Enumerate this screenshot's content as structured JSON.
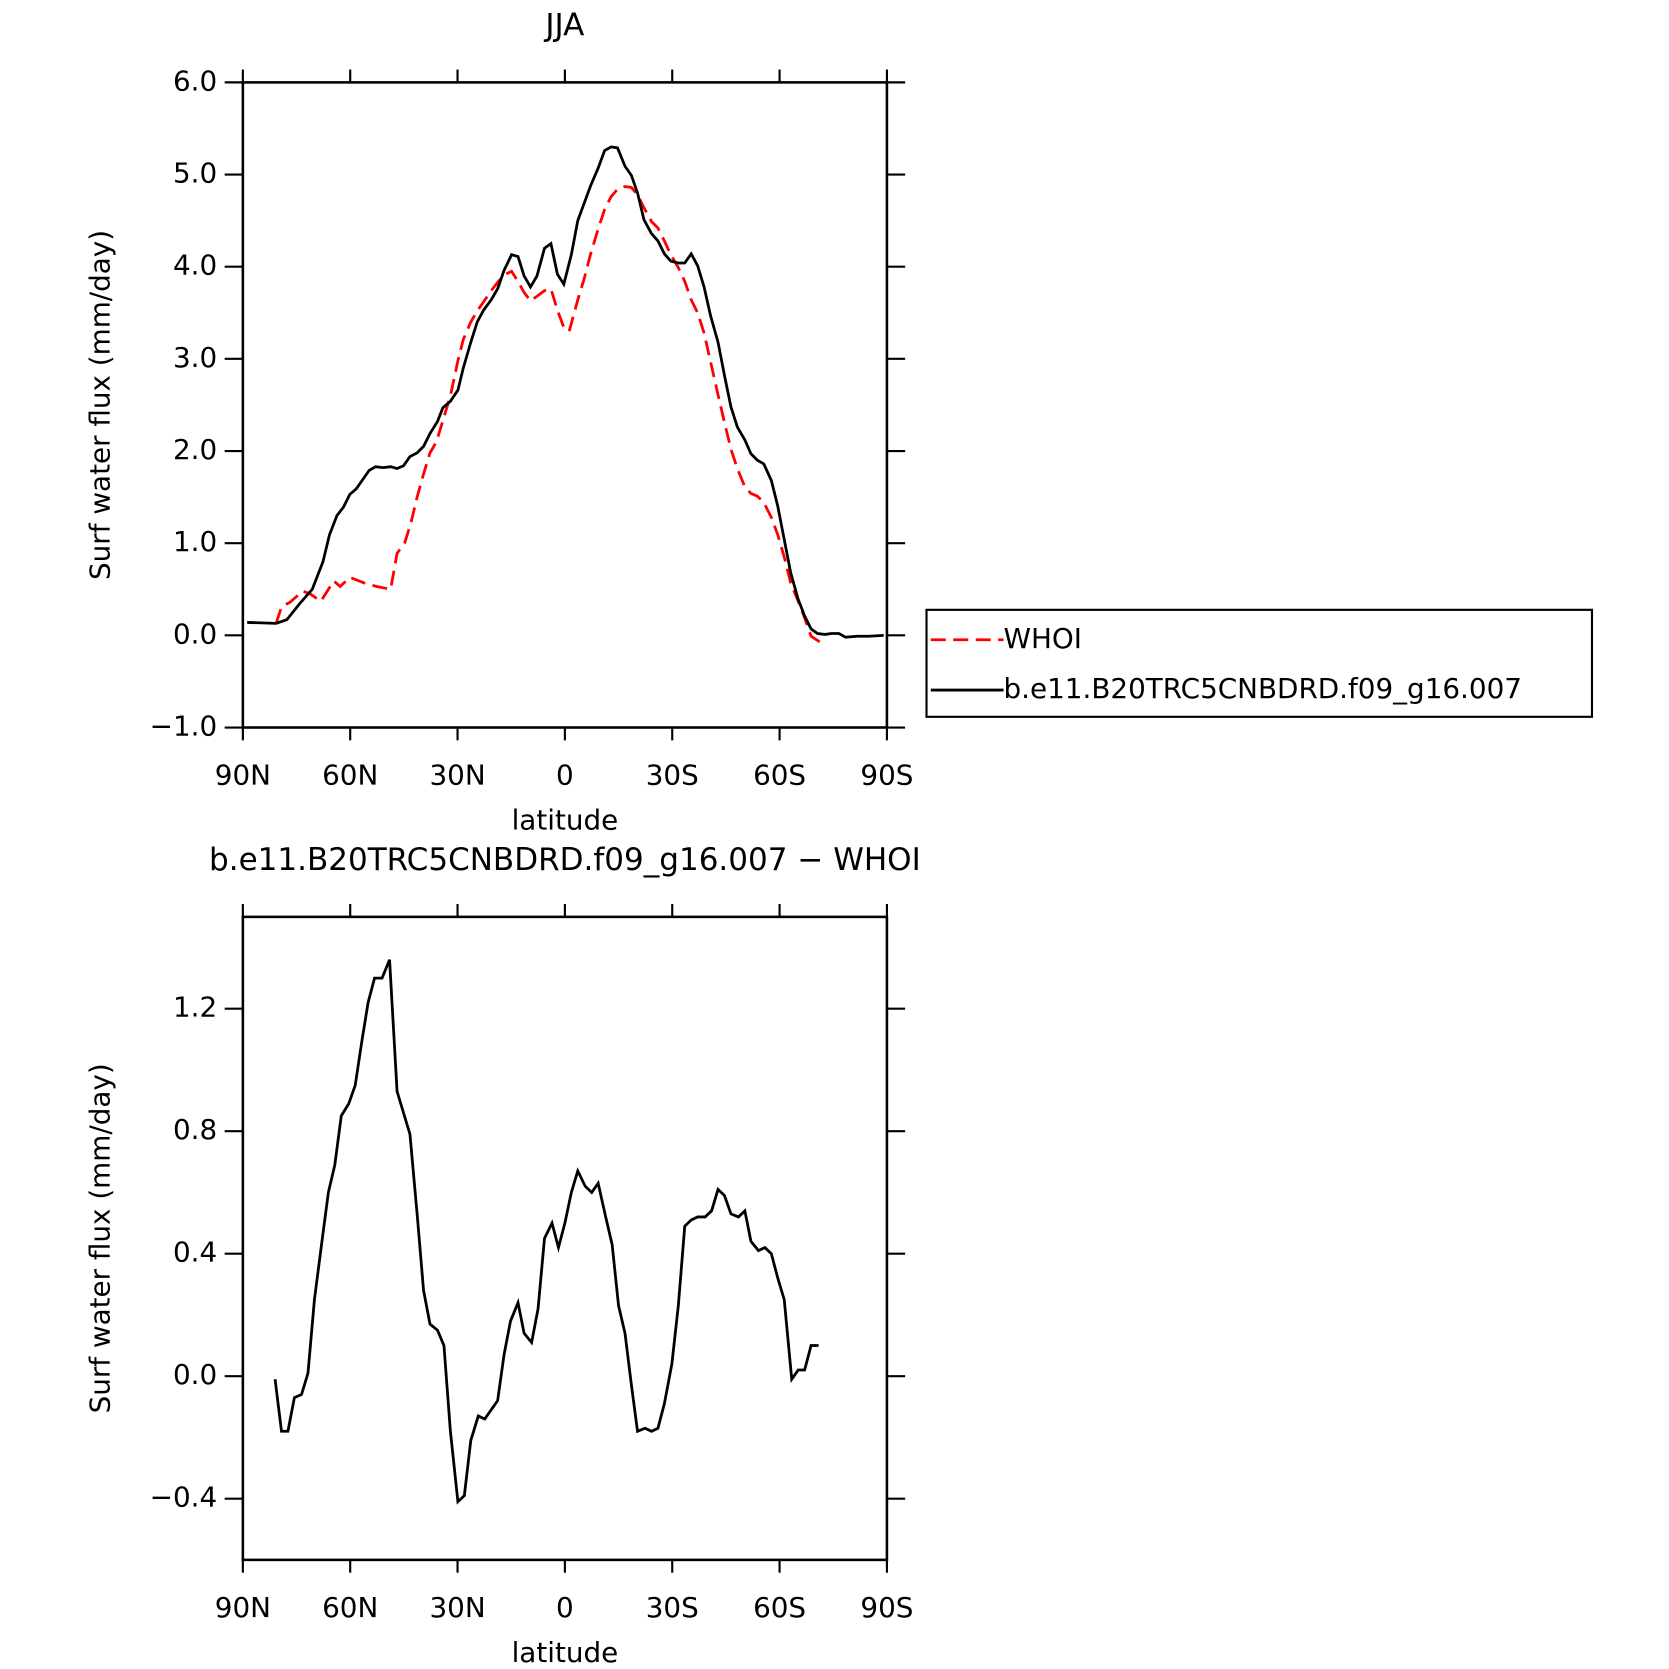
{
  "chart_data": [
    {
      "type": "line",
      "title": "JJA",
      "xlabel": "latitude",
      "ylabel": "Surf water flux (mm/day)",
      "xlim": [
        90,
        -90
      ],
      "xticks": [
        {
          "value": 90,
          "label": "90N"
        },
        {
          "value": 60,
          "label": "60N"
        },
        {
          "value": 30,
          "label": "30N"
        },
        0,
        {
          "value": -30,
          "label": "30S"
        },
        {
          "value": -60,
          "label": "60S"
        },
        {
          "value": -90,
          "label": "90S"
        }
      ],
      "ylim": [
        -1,
        6
      ],
      "yticks": [
        {
          "value": -1,
          "label": "−1.0"
        },
        {
          "value": 0,
          "label": "0.0"
        },
        {
          "value": 1,
          "label": "1.0"
        },
        {
          "value": 2,
          "label": "2.0"
        },
        {
          "value": 3,
          "label": "3.0"
        },
        {
          "value": 4,
          "label": "4.0"
        },
        {
          "value": 5,
          "label": "5.0"
        },
        {
          "value": 6,
          "label": "6.0"
        }
      ],
      "legend": "right",
      "series": [
        {
          "name": "WHOI",
          "color": "#ff0000",
          "dash": true,
          "x": [
            80.7,
            79.2,
            76.8,
            73.3,
            71.2,
            68.2,
            64.6,
            62.8,
            60.1,
            56.2,
            52.6,
            48.7,
            46.9,
            44.8,
            43.1,
            41.3,
            39.5,
            37.7,
            35.9,
            34.1,
            32.0,
            29.9,
            28.4,
            26.3,
            24.5,
            22.7,
            20.6,
            18.8,
            17.0,
            14.9,
            13.1,
            11.4,
            9.6,
            7.8,
            5.7,
            3.9,
            2.1,
            0.3,
            -1.2,
            -3.6,
            -5.4,
            -7.2,
            -9.3,
            -11.1,
            -12.9,
            -14.7,
            -16.8,
            -18.6,
            -20.3,
            -22.1,
            -24.2,
            -26.0,
            -27.8,
            -29.6,
            -31.7,
            -33.5,
            -35.3,
            -37.1,
            -38.9,
            -40.7,
            -42.8,
            -44.6,
            -46.4,
            -48.2,
            -50.3,
            -52.0,
            -53.8,
            -55.6,
            -57.7,
            -59.5,
            -61.3,
            -63.1,
            -65.2,
            -67.0,
            -68.8,
            -71.2
          ],
          "values": [
            0.13,
            0.31,
            0.36,
            0.48,
            0.45,
            0.37,
            0.59,
            0.53,
            0.63,
            0.57,
            0.53,
            0.5,
            0.89,
            1.0,
            1.21,
            1.5,
            1.75,
            1.98,
            2.1,
            2.33,
            2.6,
            2.98,
            3.21,
            3.4,
            3.52,
            3.62,
            3.74,
            3.83,
            3.91,
            3.95,
            3.84,
            3.72,
            3.63,
            3.68,
            3.74,
            3.76,
            3.53,
            3.34,
            3.3,
            3.64,
            3.87,
            4.14,
            4.41,
            4.62,
            4.76,
            4.84,
            4.87,
            4.86,
            4.78,
            4.64,
            4.49,
            4.42,
            4.28,
            4.13,
            3.99,
            3.84,
            3.64,
            3.5,
            3.28,
            2.97,
            2.61,
            2.31,
            2.02,
            1.81,
            1.61,
            1.54,
            1.51,
            1.44,
            1.28,
            1.09,
            0.85,
            0.57,
            0.37,
            0.19,
            -0.01,
            -0.07
          ]
        },
        {
          "name": "b.e11.B20TRC5CNBDRD.f09_g16.007",
          "color": "#000000",
          "x": [
            88.8,
            80.7,
            77.7,
            74.2,
            70.6,
            67.6,
            65.8,
            63.7,
            61.9,
            60.1,
            58.3,
            54.7,
            52.9,
            50.8,
            48.7,
            46.9,
            45.1,
            43.3,
            41.3,
            39.5,
            37.7,
            35.6,
            34.1,
            32.0,
            29.9,
            28.4,
            26.3,
            24.5,
            22.7,
            20.6,
            18.8,
            17.0,
            14.9,
            13.1,
            11.4,
            9.6,
            7.8,
            5.7,
            3.9,
            2.1,
            0.3,
            -1.8,
            -3.6,
            -5.4,
            -7.2,
            -9.3,
            -11.1,
            -12.9,
            -14.7,
            -16.8,
            -18.6,
            -20.3,
            -22.1,
            -24.2,
            -26.0,
            -27.8,
            -29.6,
            -31.7,
            -33.5,
            -35.3,
            -37.1,
            -38.9,
            -40.7,
            -42.8,
            -44.6,
            -46.4,
            -48.2,
            -50.3,
            -52.0,
            -53.8,
            -55.6,
            -57.7,
            -59.5,
            -61.3,
            -63.1,
            -65.2,
            -67.0,
            -68.8,
            -70.6,
            -72.7,
            -74.5,
            -76.6,
            -78.4,
            -81.7,
            -84.9,
            -89.1
          ],
          "values": [
            0.14,
            0.13,
            0.17,
            0.34,
            0.5,
            0.8,
            1.09,
            1.3,
            1.39,
            1.53,
            1.59,
            1.79,
            1.83,
            1.82,
            1.83,
            1.81,
            1.84,
            1.94,
            1.98,
            2.05,
            2.19,
            2.32,
            2.47,
            2.54,
            2.66,
            2.9,
            3.18,
            3.4,
            3.53,
            3.64,
            3.76,
            3.96,
            4.13,
            4.11,
            3.9,
            3.78,
            3.9,
            4.2,
            4.25,
            3.92,
            3.81,
            4.13,
            4.5,
            4.69,
            4.88,
            5.07,
            5.26,
            5.3,
            5.29,
            5.09,
            4.99,
            4.8,
            4.51,
            4.36,
            4.28,
            4.14,
            4.06,
            4.04,
            4.04,
            4.14,
            4.01,
            3.78,
            3.47,
            3.18,
            2.82,
            2.48,
            2.26,
            2.12,
            1.97,
            1.9,
            1.86,
            1.68,
            1.4,
            1.04,
            0.68,
            0.39,
            0.21,
            0.07,
            0.02,
            0.01,
            0.02,
            0.02,
            -0.02,
            -0.01,
            -0.01,
            0.0
          ]
        }
      ]
    },
    {
      "type": "line",
      "title": "b.e11.B20TRC5CNBDRD.f09_g16.007 − WHOI",
      "xlabel": "latitude",
      "ylabel": "Surf water flux (mm/day)",
      "xlim": [
        90,
        -90
      ],
      "xticks": [
        {
          "value": 90,
          "label": "90N"
        },
        {
          "value": 60,
          "label": "60N"
        },
        {
          "value": 30,
          "label": "30N"
        },
        0,
        {
          "value": -30,
          "label": "30S"
        },
        {
          "value": -60,
          "label": "60S"
        },
        {
          "value": -90,
          "label": "90S"
        }
      ],
      "ylim": [
        -0.6,
        1.5
      ],
      "yticks": [
        {
          "value": -0.4,
          "label": "−0.4"
        },
        {
          "value": 0,
          "label": "0.0"
        },
        0.4,
        0.8,
        1.2
      ],
      "series": [
        {
          "color": "#000000",
          "x": [
            81.0,
            79.2,
            77.4,
            75.6,
            73.6,
            71.8,
            70.0,
            67.9,
            66.1,
            64.3,
            62.5,
            60.4,
            58.6,
            56.8,
            55.0,
            53.2,
            51.1,
            49.0,
            46.9,
            45.1,
            43.3,
            41.3,
            39.5,
            37.7,
            35.6,
            33.8,
            32.0,
            29.9,
            28.1,
            26.3,
            24.2,
            22.4,
            20.6,
            18.8,
            17.0,
            15.2,
            13.1,
            11.4,
            9.3,
            7.5,
            5.7,
            3.6,
            1.8,
            0.0,
            -1.8,
            -3.6,
            -5.7,
            -7.5,
            -9.3,
            -11.4,
            -13.2,
            -15.0,
            -16.8,
            -18.6,
            -20.3,
            -22.4,
            -24.2,
            -26.0,
            -27.8,
            -29.9,
            -31.7,
            -33.5,
            -35.3,
            -37.1,
            -39.2,
            -41.0,
            -42.8,
            -44.6,
            -46.4,
            -48.5,
            -50.3,
            -52.0,
            -54.1,
            -55.9,
            -57.7,
            -59.5,
            -61.3,
            -63.4,
            -65.2,
            -67.0,
            -68.8,
            -70.9
          ],
          "values": [
            -0.01,
            -0.18,
            -0.18,
            -0.07,
            -0.06,
            0.01,
            0.25,
            0.44,
            0.6,
            0.69,
            0.85,
            0.89,
            0.95,
            1.09,
            1.22,
            1.3,
            1.3,
            1.36,
            0.93,
            0.86,
            0.79,
            0.53,
            0.28,
            0.17,
            0.15,
            0.1,
            -0.18,
            -0.41,
            -0.39,
            -0.21,
            -0.13,
            -0.14,
            -0.11,
            -0.08,
            0.07,
            0.18,
            0.24,
            0.14,
            0.11,
            0.22,
            0.45,
            0.5,
            0.42,
            0.5,
            0.6,
            0.67,
            0.62,
            0.6,
            0.63,
            0.52,
            0.43,
            0.23,
            0.14,
            -0.03,
            -0.18,
            -0.17,
            -0.18,
            -0.17,
            -0.09,
            0.04,
            0.23,
            0.49,
            0.51,
            0.52,
            0.52,
            0.54,
            0.61,
            0.59,
            0.53,
            0.52,
            0.54,
            0.44,
            0.41,
            0.42,
            0.4,
            0.32,
            0.25,
            -0.01,
            0.02,
            0.02,
            0.1,
            0.1
          ]
        }
      ]
    }
  ]
}
